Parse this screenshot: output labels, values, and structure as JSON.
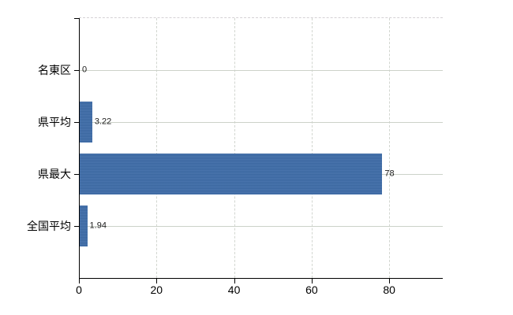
{
  "figure": {
    "background_color": "#ffffff",
    "bar_color": "#3d6ca8",
    "hgrid_color": "#ccd2c9",
    "vgrid_color": "#d2d6d0",
    "axis_color": "#000000"
  },
  "chart_data": {
    "type": "bar",
    "orientation": "horizontal",
    "title": "",
    "xlabel": "",
    "ylabel": "",
    "categories": [
      "名東区",
      "県平均",
      "県最大",
      "全国平均"
    ],
    "values": [
      0,
      3.22,
      78,
      1.94
    ],
    "value_labels": [
      "0",
      "3.22",
      "78",
      "1.94"
    ],
    "x_ticks": [
      0,
      20,
      40,
      60,
      80
    ],
    "x_tick_labels": [
      "0",
      "20",
      "40",
      "60",
      "80"
    ],
    "xlim": [
      0,
      93.8
    ],
    "grid": "horizontal solid at category centers, vertical dashed at ticks",
    "legend": "none"
  }
}
